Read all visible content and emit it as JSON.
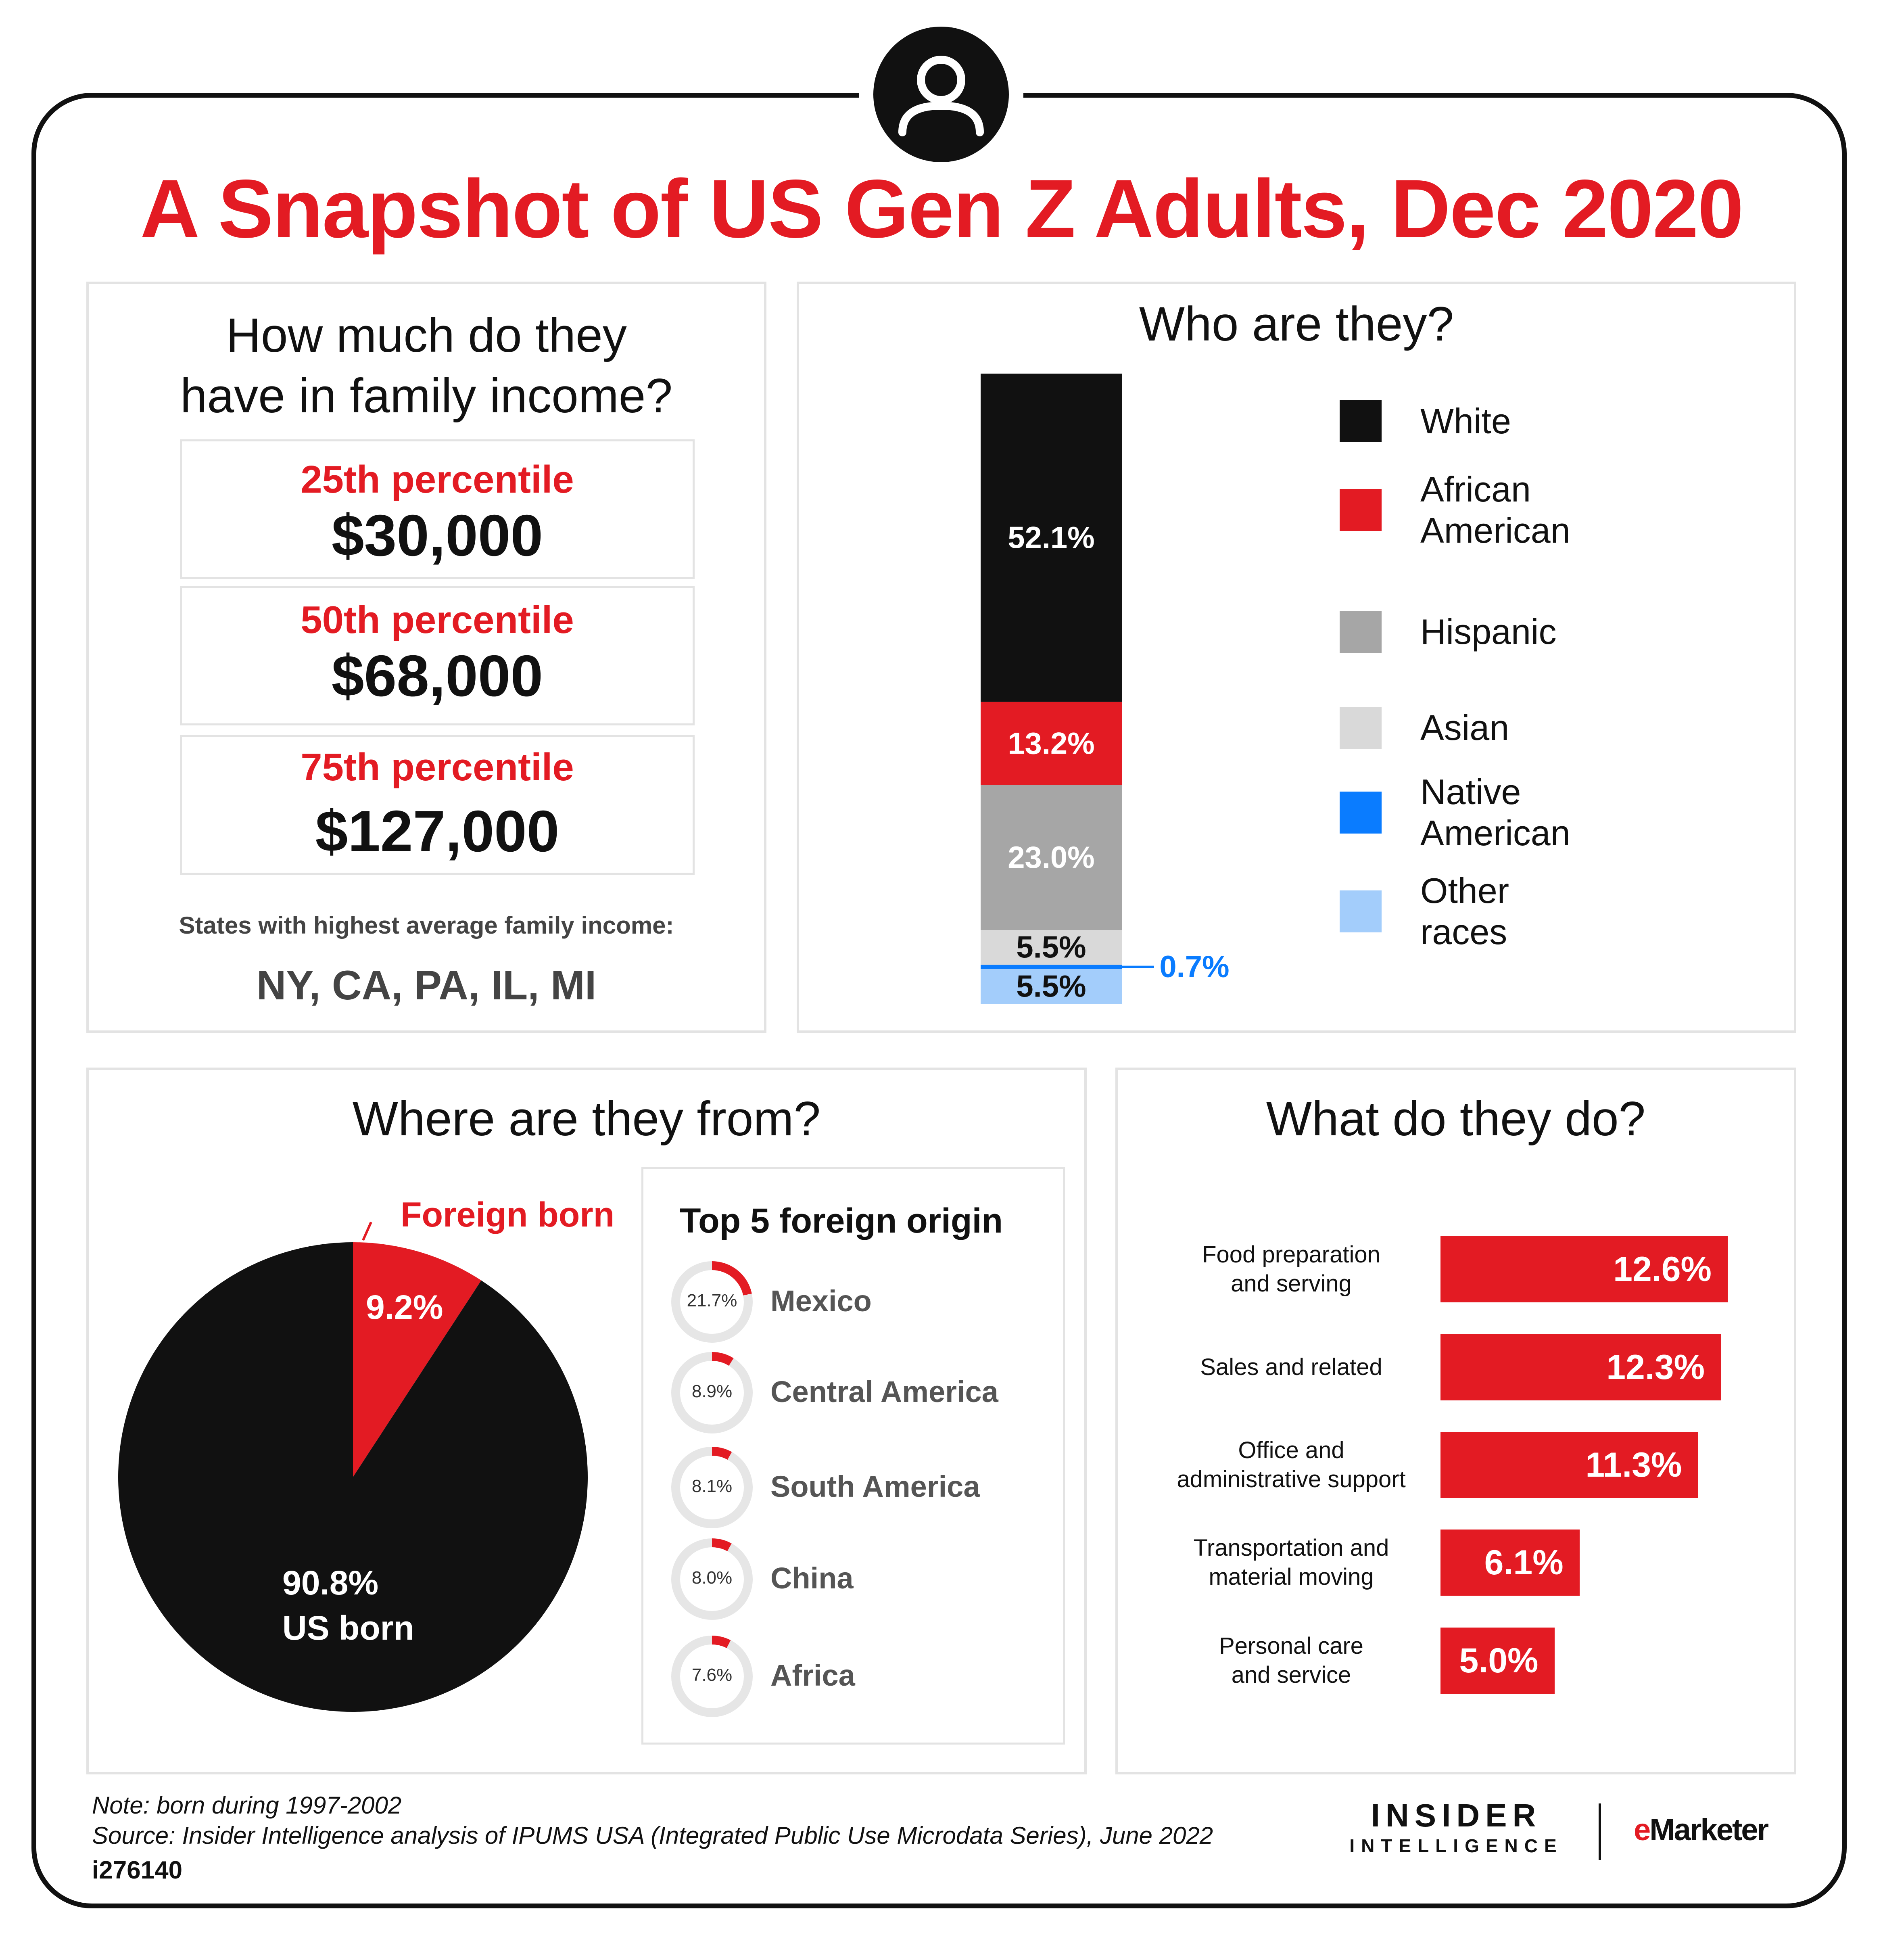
{
  "title": "A Snapshot of US Gen Z Adults, Dec 2020",
  "income": {
    "heading_line1": "How much do they",
    "heading_line2": "have in family income?",
    "percentiles": [
      {
        "label": "25th percentile",
        "value": "$30,000"
      },
      {
        "label": "50th percentile",
        "value": "$68,000"
      },
      {
        "label": "75th percentile",
        "value": "$127,000"
      }
    ],
    "states_label": "States with highest average family income:",
    "states": "NY, CA, PA, IL, MI"
  },
  "race": {
    "heading": "Who are they?",
    "legend": [
      {
        "line1": "White",
        "line2": "",
        "color": "#111111"
      },
      {
        "line1": "African",
        "line2": "American",
        "color": "#e31b23"
      },
      {
        "line1": "Hispanic",
        "line2": "",
        "color": "#a6a6a6"
      },
      {
        "line1": "Asian",
        "line2": "",
        "color": "#d9d9d9"
      },
      {
        "line1": "Native",
        "line2": "American",
        "color": "#0a7cff"
      },
      {
        "line1": "Other",
        "line2": "races",
        "color": "#a3cdfb"
      }
    ]
  },
  "origin": {
    "heading": "Where are they from?",
    "foreign_label": "Foreign born",
    "foreign_pct": "9.2%",
    "us_pct": "90.8%",
    "us_label": "US born",
    "top5_heading": "Top 5 foreign origin",
    "top5": [
      {
        "name": "Mexico",
        "pct_label": "21.7%",
        "value": 21.7
      },
      {
        "name": "Central America",
        "pct_label": "8.9%",
        "value": 8.9
      },
      {
        "name": "South America",
        "pct_label": "8.1%",
        "value": 8.1
      },
      {
        "name": "China",
        "pct_label": "8.0%",
        "value": 8.0
      },
      {
        "name": "Africa",
        "pct_label": "7.6%",
        "value": 7.6
      }
    ]
  },
  "jobs": {
    "heading": "What do they do?",
    "items": [
      {
        "line1": "Food preparation",
        "line2": "and serving"
      },
      {
        "line1": "Sales and related",
        "line2": ""
      },
      {
        "line1": "Office and",
        "line2": "administrative support"
      },
      {
        "line1": "Transportation and",
        "line2": "material moving"
      },
      {
        "line1": "Personal care",
        "line2": "and service"
      }
    ]
  },
  "footer": {
    "note": "Note: born during 1997-2002",
    "source": "Source: Insider Intelligence analysis of IPUMS USA (Integrated Public Use Microdata Series), June 2022",
    "id": "i276140",
    "brand1_line1": "INSIDER",
    "brand1_line2": "INTELLIGENCE",
    "brand2": "eMarketer"
  },
  "chart_data": [
    {
      "type": "bar",
      "stacked": true,
      "categories": [
        "White",
        "African American",
        "Hispanic",
        "Asian",
        "Native American",
        "Other races"
      ],
      "values": [
        52.1,
        13.2,
        23.0,
        5.5,
        0.7,
        5.5
      ],
      "labels": [
        "52.1%",
        "13.2%",
        "23.0%",
        "5.5%",
        "0.7%",
        "5.5%"
      ],
      "colors": [
        "#111111",
        "#e31b23",
        "#a6a6a6",
        "#d9d9d9",
        "#0a7cff",
        "#a3cdfb"
      ],
      "title": "Who are they?"
    },
    {
      "type": "pie",
      "categories": [
        "Foreign born",
        "US born"
      ],
      "values": [
        9.2,
        90.8
      ],
      "colors": [
        "#e31b23",
        "#111111"
      ],
      "title": "Where are they from?"
    },
    {
      "type": "bar",
      "orientation": "horizontal",
      "categories": [
        "Food preparation and serving",
        "Sales and related",
        "Office and administrative support",
        "Transportation and material moving",
        "Personal care and service"
      ],
      "values": [
        12.6,
        12.3,
        11.3,
        6.1,
        5.0
      ],
      "labels": [
        "12.6%",
        "12.3%",
        "11.3%",
        "6.1%",
        "5.0%"
      ],
      "title": "What do they do?"
    }
  ]
}
